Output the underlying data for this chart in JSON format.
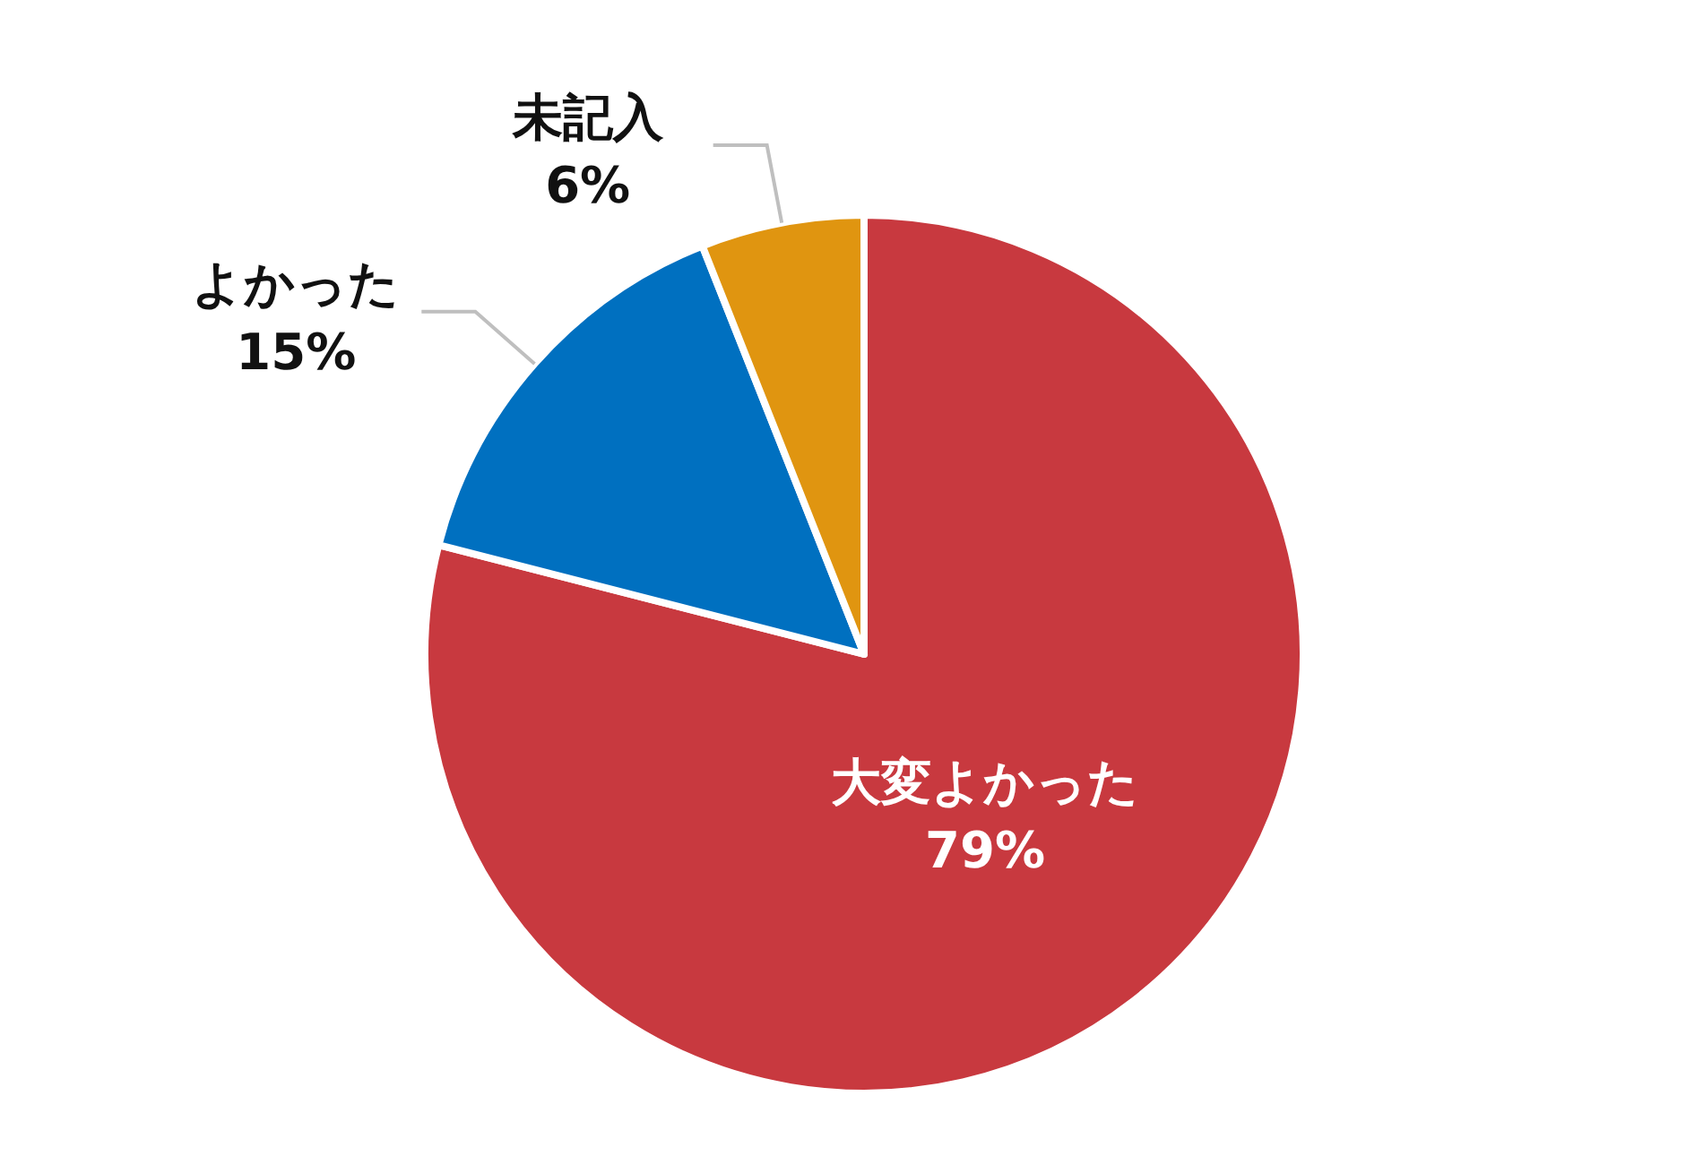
{
  "chart_data": {
    "type": "pie",
    "categories": [
      "大変よかった",
      "よかった",
      "未記入"
    ],
    "values": [
      79,
      15,
      6
    ],
    "colors": [
      "#c8393f",
      "#0070c0",
      "#e09510"
    ],
    "value_labels": [
      "79%",
      "15%",
      "6%"
    ]
  }
}
